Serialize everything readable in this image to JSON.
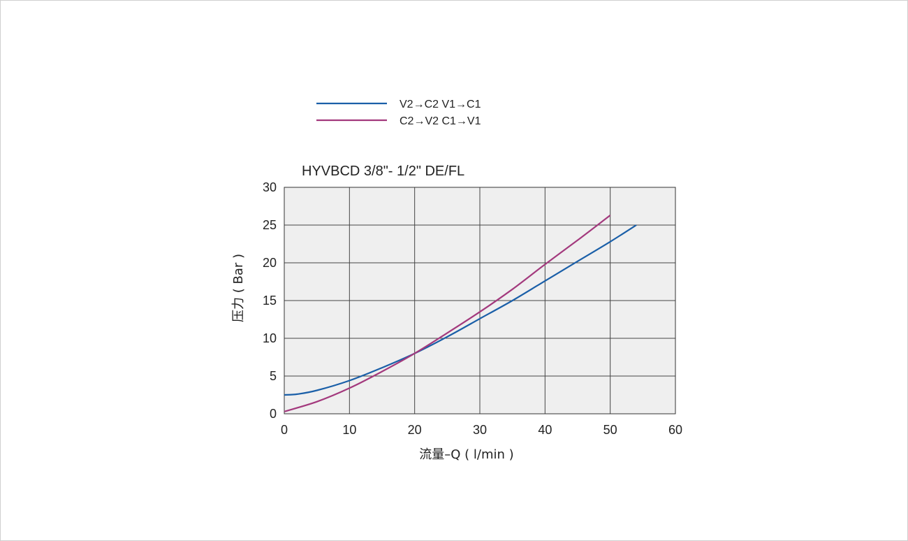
{
  "chart_data": {
    "type": "line",
    "title": "HYVBCD 3/8\"- 1/2\" DE/FL",
    "xlabel": "流量–Q ( l/min )",
    "ylabel": "压力 ( Bar )",
    "xlim": [
      0,
      60
    ],
    "ylim": [
      0,
      30
    ],
    "xticks": [
      "0",
      "10",
      "20",
      "30",
      "40",
      "50",
      "60"
    ],
    "yticks": [
      "0",
      "5",
      "10",
      "15",
      "20",
      "25",
      "30"
    ],
    "grid": true,
    "legend_position": "top-left",
    "series": [
      {
        "name": "V2→C2   V1→C1",
        "color": "#1a5fa8",
        "x": [
          0,
          2,
          5,
          10,
          15,
          20,
          25,
          30,
          35,
          40,
          45,
          50,
          54
        ],
        "y": [
          2.5,
          2.6,
          3.1,
          4.4,
          6.1,
          8.0,
          10.2,
          12.6,
          15.0,
          17.6,
          20.2,
          22.8,
          25.0
        ]
      },
      {
        "name": "C2→V2   C1→V1",
        "color": "#a3397d",
        "x": [
          0,
          5,
          10,
          15,
          20,
          25,
          30,
          35,
          40,
          45,
          50
        ],
        "y": [
          0.3,
          1.6,
          3.4,
          5.6,
          8.0,
          10.7,
          13.5,
          16.5,
          19.8,
          23.0,
          26.3
        ]
      }
    ]
  }
}
